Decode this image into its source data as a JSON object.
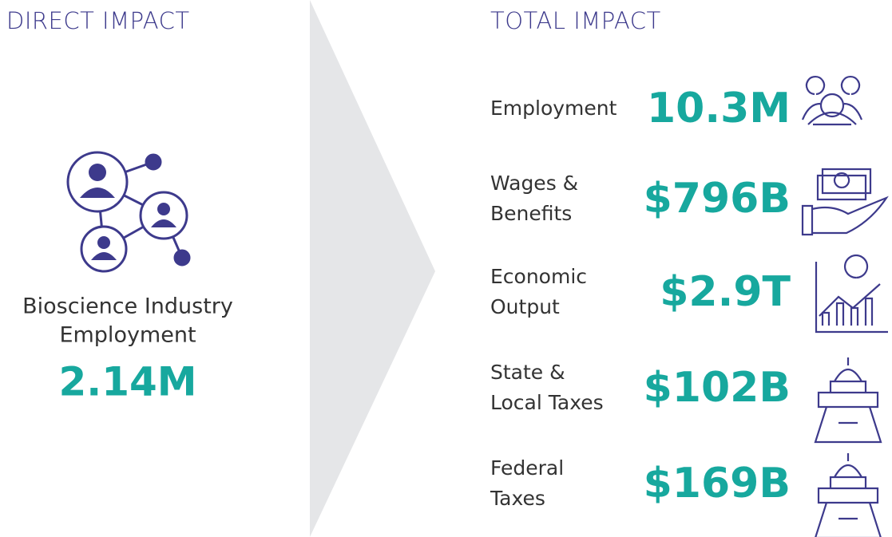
{
  "direct": {
    "title": "DIRECT IMPACT",
    "label_lines": [
      "Bioscience Industry",
      "Employment"
    ],
    "value": "2.14M"
  },
  "total": {
    "title": "TOTAL IMPACT",
    "items": [
      {
        "label_lines": [
          "Employment"
        ],
        "value": "10.3M"
      },
      {
        "label_lines": [
          "Wages &",
          "Benefits"
        ],
        "value": "$796B"
      },
      {
        "label_lines": [
          "Economic",
          "Output"
        ],
        "value": "$2.9T"
      },
      {
        "label_lines": [
          "State &",
          "Local Taxes"
        ],
        "value": "$102B"
      },
      {
        "label_lines": [
          "Federal",
          "Taxes"
        ],
        "value": "$169B"
      }
    ]
  }
}
